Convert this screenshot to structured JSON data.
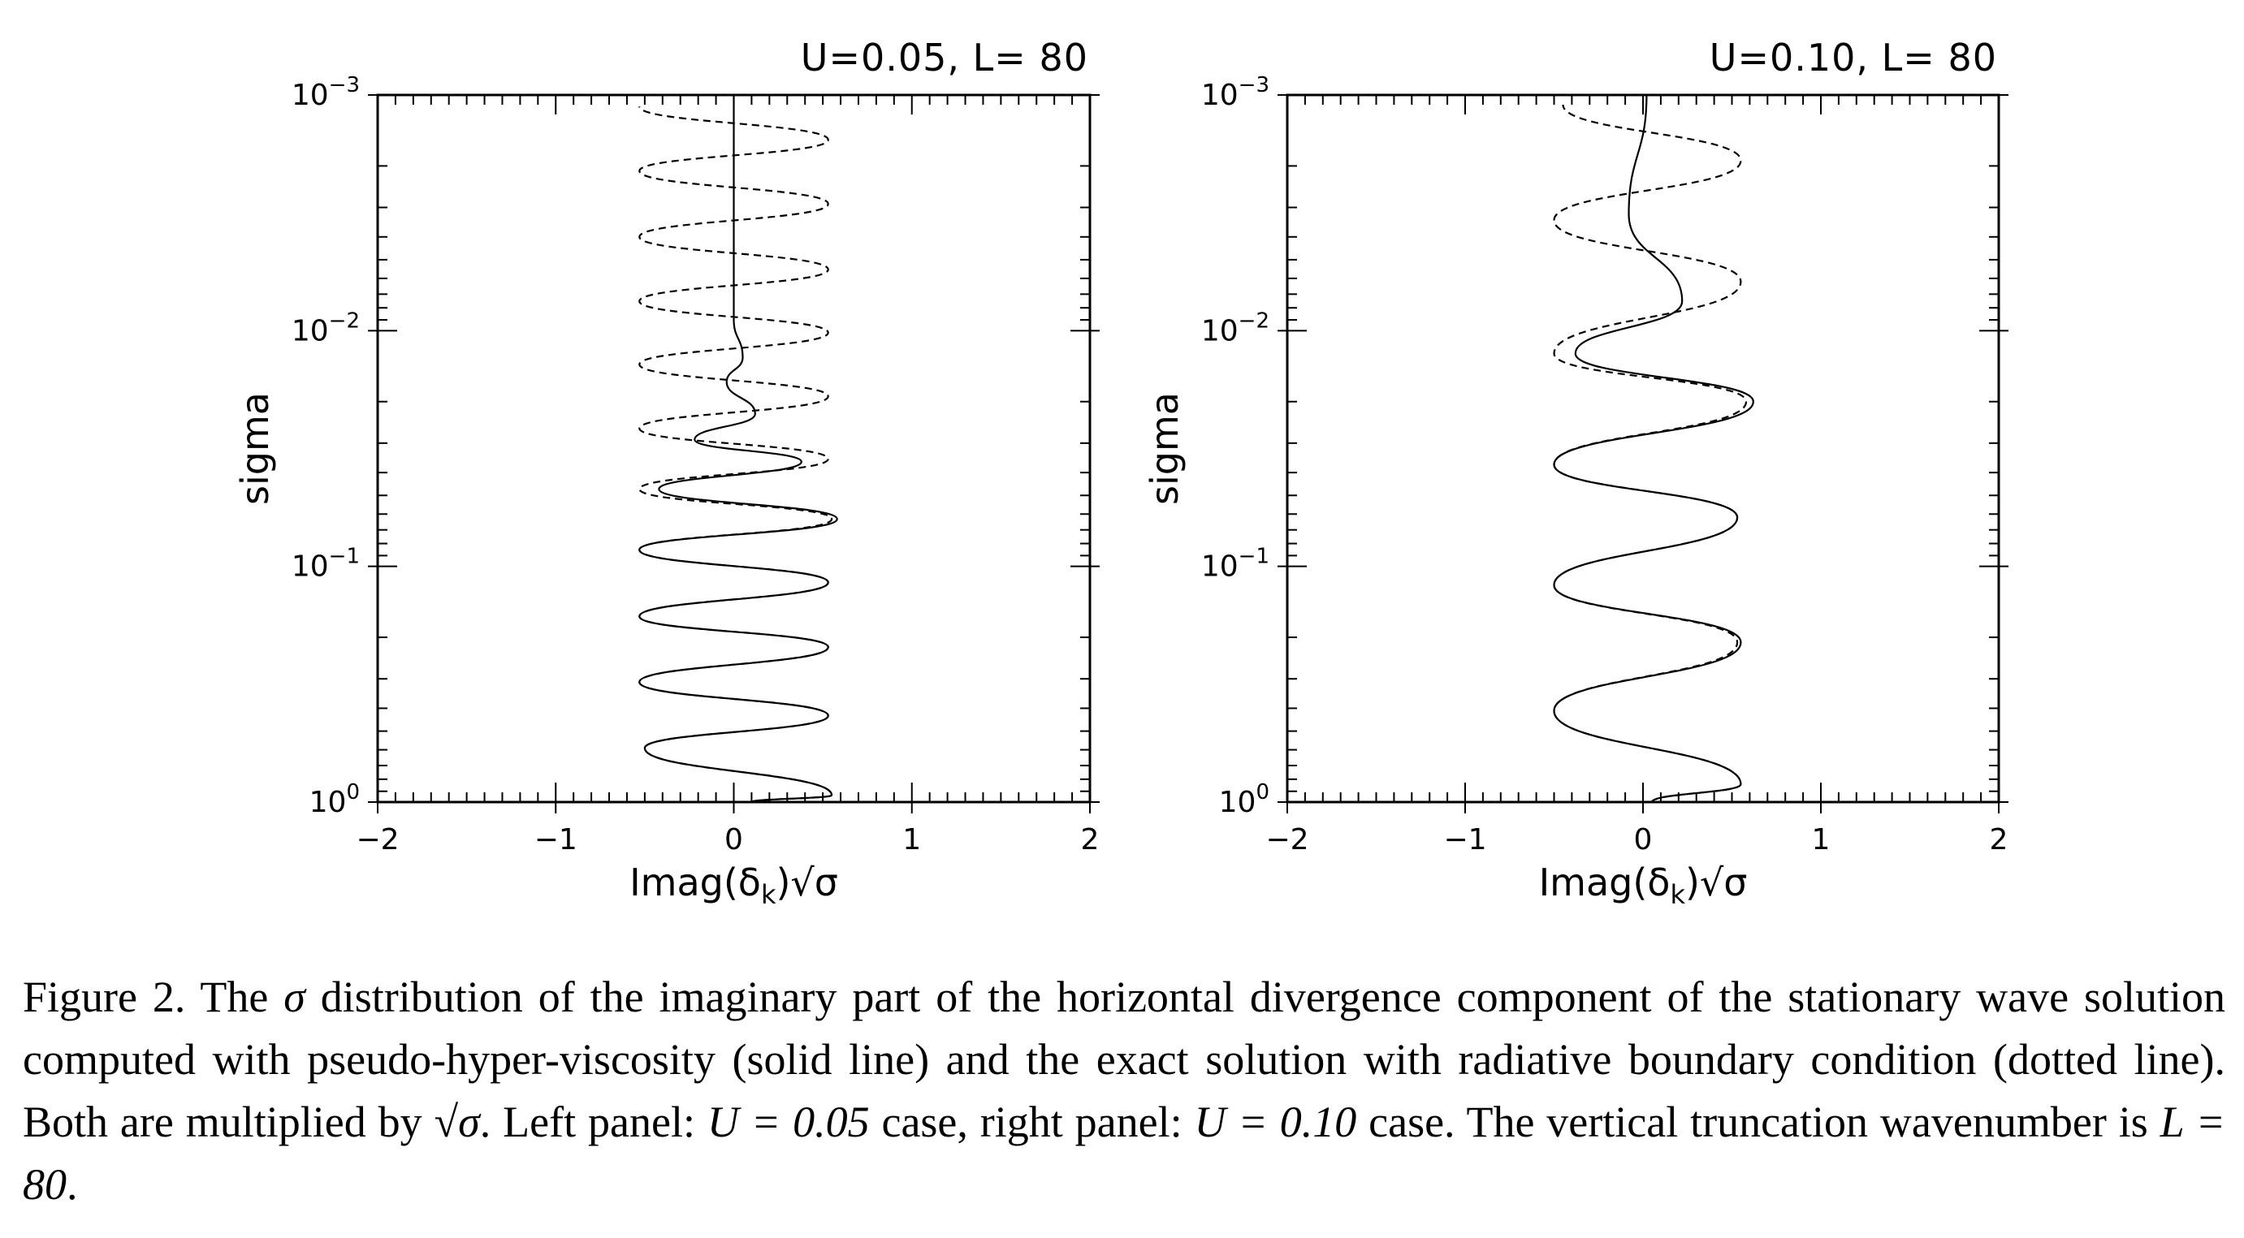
{
  "figure": {
    "caption_parts": {
      "p1": "Figure 2. The ",
      "sigma_sym": "σ",
      "p2": " distribution of the imaginary part of the horizontal divergence component of the stationary wave solution computed with pseudo-hyper-viscosity (solid line) and the exact solution with radiative boundary condition (dotted line). Both are multiplied by ",
      "sqrt_sigma": "√σ",
      "p3": ". Left panel: ",
      "eq1": "U = 0.05",
      "p4": " case, right panel: ",
      "eq2": "U = 0.10",
      "p5": " case. The vertical truncation wavenumber is ",
      "eq3": "L = 80",
      "p6": "."
    }
  },
  "chart_data": [
    {
      "type": "line",
      "title": "U=0.05, L= 80",
      "xlabel": "Imag(δ_k)√σ",
      "xlabel_parts": {
        "pre": "Imag(δ",
        "sub": "k",
        "post": ")√σ"
      },
      "ylabel": "sigma",
      "xlim": [
        -2,
        2
      ],
      "ylim": [
        1,
        0.001
      ],
      "yscale": "log",
      "y_inverted": true,
      "x_ticks": [
        {
          "v": -2,
          "label": "−2"
        },
        {
          "v": -1,
          "label": "−1"
        },
        {
          "v": 0,
          "label": "0"
        },
        {
          "v": 1,
          "label": "1"
        },
        {
          "v": 2,
          "label": "2"
        }
      ],
      "y_ticks": [
        {
          "v": 0.001,
          "base": "10",
          "exp": "−3"
        },
        {
          "v": 0.01,
          "base": "10",
          "exp": "−2"
        },
        {
          "v": 0.1,
          "base": "10",
          "exp": "−1"
        },
        {
          "v": 1,
          "base": "10",
          "exp": "0"
        }
      ],
      "series": [
        {
          "style": "solid",
          "points": [
            [
              0.1,
              1.0
            ],
            [
              0.55,
              0.935
            ],
            [
              -0.5,
              0.59
            ],
            [
              0.53,
              0.43
            ],
            [
              -0.53,
              0.31
            ],
            [
              0.53,
              0.22
            ],
            [
              -0.53,
              0.163
            ],
            [
              0.53,
              0.117
            ],
            [
              -0.53,
              0.085
            ],
            [
              0.58,
              0.063
            ],
            [
              -0.42,
              0.047
            ],
            [
              0.38,
              0.036
            ],
            [
              -0.22,
              0.029
            ],
            [
              0.12,
              0.0225
            ],
            [
              -0.04,
              0.0165
            ],
            [
              0.05,
              0.013
            ],
            [
              0.0,
              0.009
            ],
            [
              0.0,
              0.001
            ]
          ]
        },
        {
          "style": "dashed",
          "points": [
            [
              0.1,
              1.0
            ],
            [
              0.55,
              0.935
            ],
            [
              -0.5,
              0.59
            ],
            [
              0.53,
              0.43
            ],
            [
              -0.53,
              0.31
            ],
            [
              0.53,
              0.22
            ],
            [
              -0.53,
              0.163
            ],
            [
              0.53,
              0.117
            ],
            [
              -0.53,
              0.085
            ],
            [
              0.55,
              0.063
            ],
            [
              -0.53,
              0.047
            ],
            [
              0.53,
              0.035
            ],
            [
              -0.53,
              0.026
            ],
            [
              0.53,
              0.019
            ],
            [
              -0.53,
              0.0139
            ],
            [
              0.53,
              0.0102
            ],
            [
              -0.53,
              0.0075
            ],
            [
              0.53,
              0.0055
            ],
            [
              -0.53,
              0.004
            ],
            [
              0.53,
              0.0029
            ],
            [
              -0.53,
              0.0021
            ],
            [
              0.53,
              0.00155
            ],
            [
              -0.53,
              0.00112
            ]
          ]
        }
      ]
    },
    {
      "type": "line",
      "title": "U=0.10, L= 80",
      "xlabel": "Imag(δ_k)√σ",
      "xlabel_parts": {
        "pre": "Imag(δ",
        "sub": "k",
        "post": ")√σ"
      },
      "ylabel": "sigma",
      "xlim": [
        -2,
        2
      ],
      "ylim": [
        1,
        0.001
      ],
      "yscale": "log",
      "y_inverted": true,
      "x_ticks": [
        {
          "v": -2,
          "label": "−2"
        },
        {
          "v": -1,
          "label": "−1"
        },
        {
          "v": 0,
          "label": "0"
        },
        {
          "v": 1,
          "label": "1"
        },
        {
          "v": 2,
          "label": "2"
        }
      ],
      "y_ticks": [
        {
          "v": 0.001,
          "base": "10",
          "exp": "−3"
        },
        {
          "v": 0.01,
          "base": "10",
          "exp": "−2"
        },
        {
          "v": 0.1,
          "base": "10",
          "exp": "−1"
        },
        {
          "v": 1,
          "base": "10",
          "exp": "0"
        }
      ],
      "series": [
        {
          "style": "solid",
          "points": [
            [
              0.05,
              1.0
            ],
            [
              0.55,
              0.84
            ],
            [
              -0.5,
              0.41
            ],
            [
              0.55,
              0.21
            ],
            [
              -0.5,
              0.12
            ],
            [
              0.53,
              0.062
            ],
            [
              -0.5,
              0.037
            ],
            [
              0.62,
              0.02
            ],
            [
              -0.38,
              0.0125
            ],
            [
              0.22,
              0.0075
            ],
            [
              -0.08,
              0.0032
            ],
            [
              0.02,
              0.001
            ]
          ]
        },
        {
          "style": "dashed",
          "points": [
            [
              0.05,
              1.0
            ],
            [
              0.55,
              0.84
            ],
            [
              -0.5,
              0.41
            ],
            [
              0.53,
              0.21
            ],
            [
              -0.5,
              0.12
            ],
            [
              0.53,
              0.062
            ],
            [
              -0.5,
              0.037
            ],
            [
              0.58,
              0.02
            ],
            [
              -0.5,
              0.0125
            ],
            [
              0.55,
              0.0062
            ],
            [
              -0.5,
              0.0034
            ],
            [
              0.55,
              0.0019
            ],
            [
              -0.45,
              0.0011
            ]
          ]
        }
      ]
    }
  ]
}
